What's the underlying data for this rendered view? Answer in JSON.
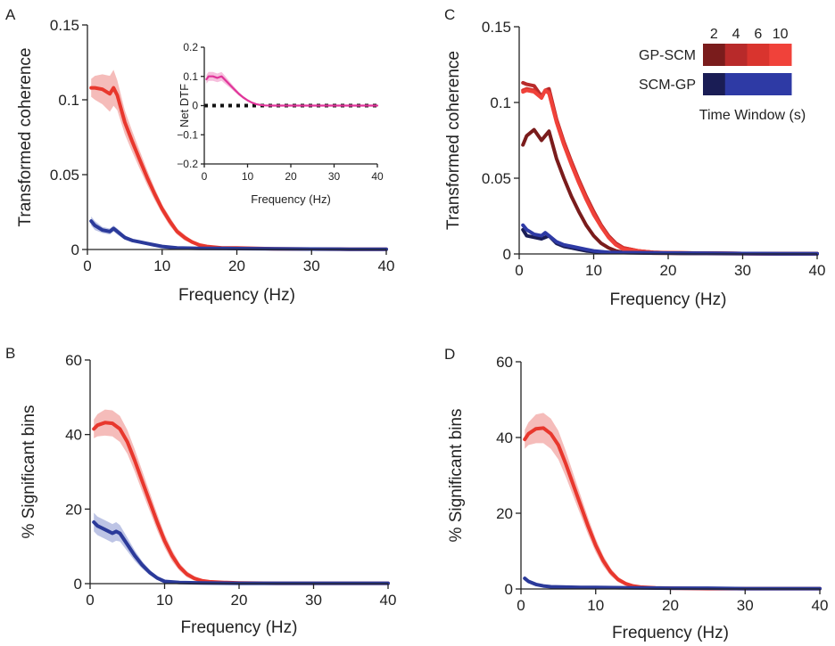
{
  "colors": {
    "red": "#e8372d",
    "blue": "#2b3a9a",
    "magenta": "#e0359a",
    "red_shade": "#f2a6a3",
    "blue_shade": "#a7b0dc",
    "magenta_shade": "#f3a9d2",
    "gp_scm_2": "#7a1c1c",
    "gp_scm_4": "#b82a2a",
    "gp_scm_6": "#d9342e",
    "gp_scm_10": "#f0423a",
    "scm_gp_2": "#1a1d55",
    "scm_gp_other": "#2e3aa5"
  },
  "chart_data": [
    {
      "id": "A",
      "type": "line",
      "panel_label": "A",
      "xlabel": "Frequency (Hz)",
      "ylabel": "Transformed coherence",
      "xlim": [
        0,
        40
      ],
      "ylim": [
        0,
        0.15
      ],
      "xticks": [
        0,
        10,
        20,
        30,
        40
      ],
      "yticks": [
        0,
        0.05,
        0.1,
        0.15
      ],
      "ytick_labels": [
        "0",
        "0.05",
        "0.1",
        "0.15"
      ],
      "grid": false,
      "series": [
        {
          "color_key": "red",
          "shade_key": "red_shade",
          "x": [
            0.5,
            1,
            2,
            3,
            3.5,
            4,
            5,
            6,
            7,
            8,
            9,
            10,
            11,
            12,
            13,
            14,
            15,
            16,
            18,
            20,
            25,
            30,
            35,
            40
          ],
          "y": [
            0.108,
            0.108,
            0.107,
            0.104,
            0.108,
            0.103,
            0.085,
            0.072,
            0.06,
            0.048,
            0.037,
            0.027,
            0.019,
            0.012,
            0.008,
            0.005,
            0.003,
            0.002,
            0.001,
            0.001,
            0.0005,
            0.0003,
            0.0002,
            0.0002
          ],
          "err": [
            0.006,
            0.008,
            0.01,
            0.012,
            0.012,
            0.01,
            0.008,
            0.007,
            0.006,
            0.005,
            0.004,
            0.003,
            0.003,
            0.002,
            0.002,
            0.001,
            0.001,
            0.001,
            0.001,
            0.001,
            0.0005,
            0.0005,
            0.0005,
            0.0005
          ]
        },
        {
          "color_key": "blue",
          "shade_key": "blue_shade",
          "x": [
            0.5,
            1,
            2,
            3,
            3.5,
            4,
            5,
            6,
            7,
            8,
            9,
            10,
            12,
            15,
            20,
            25,
            30,
            35,
            40
          ],
          "y": [
            0.019,
            0.016,
            0.013,
            0.012,
            0.014,
            0.012,
            0.008,
            0.006,
            0.005,
            0.004,
            0.003,
            0.002,
            0.001,
            0.0008,
            0.0006,
            0.0004,
            0.0003,
            0.0002,
            0.0002
          ],
          "err": [
            0.003,
            0.003,
            0.002,
            0.002,
            0.002,
            0.002,
            0.0015,
            0.001,
            0.001,
            0.001,
            0.0008,
            0.0006,
            0.0005,
            0.0004,
            0.0003,
            0.0002,
            0.0002,
            0.0002,
            0.0002
          ]
        }
      ],
      "inset": {
        "xlabel": "Frequency (Hz)",
        "ylabel": "Net DTF",
        "xlim": [
          0,
          40
        ],
        "ylim": [
          -0.2,
          0.2
        ],
        "xticks": [
          0,
          10,
          20,
          30,
          40
        ],
        "yticks": [
          -0.2,
          -0.1,
          0,
          0.1,
          0.2
        ],
        "ytick_labels": [
          "−0.2",
          "−0.1",
          "0",
          "0.1",
          "0.2"
        ],
        "series": {
          "color_key": "magenta",
          "shade_key": "magenta_shade",
          "x": [
            0.5,
            1,
            2,
            3,
            4,
            5,
            6,
            7,
            8,
            9,
            10,
            11,
            12,
            13,
            14,
            16,
            20,
            25,
            30,
            35,
            40
          ],
          "y": [
            0.09,
            0.1,
            0.1,
            0.095,
            0.1,
            0.085,
            0.07,
            0.055,
            0.04,
            0.028,
            0.018,
            0.01,
            0.005,
            0.002,
            0.0005,
            0,
            0,
            0,
            0,
            0,
            0
          ],
          "err": [
            0.015,
            0.015,
            0.015,
            0.015,
            0.015,
            0.013,
            0.01,
            0.008,
            0.006,
            0.005,
            0.004,
            0.003,
            0.002,
            0.001,
            0.001,
            0.001,
            0.001,
            0.001,
            0.001,
            0.001,
            0.001
          ]
        },
        "zero_line": {
          "style": "dotted",
          "value": 0
        }
      }
    },
    {
      "id": "B",
      "type": "line",
      "panel_label": "B",
      "xlabel": "Frequency (Hz)",
      "ylabel": "% Significant bins",
      "xlim": [
        0,
        40
      ],
      "ylim": [
        0,
        60
      ],
      "xticks": [
        0,
        10,
        20,
        30,
        40
      ],
      "yticks": [
        0,
        20,
        40,
        60
      ],
      "ytick_labels": [
        "0",
        "20",
        "40",
        "60"
      ],
      "grid": false,
      "series": [
        {
          "color_key": "red",
          "shade_key": "red_shade",
          "x": [
            0.5,
            1,
            2,
            3,
            4,
            5,
            6,
            7,
            8,
            9,
            10,
            11,
            12,
            13,
            14,
            15,
            16,
            18,
            20,
            25,
            30,
            35,
            40
          ],
          "y": [
            41.5,
            42.5,
            43.2,
            43.0,
            41.5,
            38,
            33,
            27.5,
            22,
            16.5,
            11.5,
            7.5,
            4.5,
            2.5,
            1.4,
            0.8,
            0.5,
            0.3,
            0.2,
            0.1,
            0.1,
            0.1,
            0.1
          ],
          "err": [
            2.5,
            3.0,
            3.5,
            3.5,
            3.5,
            3.2,
            3.0,
            2.8,
            2.5,
            2.2,
            1.8,
            1.5,
            1.0,
            0.8,
            0.6,
            0.4,
            0.3,
            0.2,
            0.2,
            0.1,
            0.1,
            0.1,
            0.1
          ]
        },
        {
          "color_key": "blue",
          "shade_key": "blue_shade",
          "x": [
            0.5,
            1,
            2,
            3,
            3.5,
            4,
            5,
            6,
            7,
            8,
            9,
            10,
            12,
            15,
            20,
            25,
            30,
            35,
            40
          ],
          "y": [
            16.5,
            15.5,
            14.5,
            13.5,
            14,
            13.5,
            10.5,
            7.5,
            5,
            3,
            1.5,
            0.6,
            0.3,
            0.2,
            0.1,
            0.1,
            0.1,
            0.1,
            0.1
          ],
          "err": [
            2.5,
            2.5,
            2.5,
            2.5,
            2.5,
            2.2,
            1.8,
            1.4,
            1.0,
            0.7,
            0.5,
            0.3,
            0.2,
            0.1,
            0.1,
            0.1,
            0.1,
            0.1,
            0.1
          ]
        }
      ]
    },
    {
      "id": "C",
      "type": "line",
      "panel_label": "C",
      "xlabel": "Frequency (Hz)",
      "ylabel": "Transformed coherence",
      "xlim": [
        0,
        40
      ],
      "ylim": [
        0,
        0.15
      ],
      "xticks": [
        0,
        10,
        20,
        30,
        40
      ],
      "yticks": [
        0,
        0.05,
        0.1,
        0.15
      ],
      "ytick_labels": [
        "0",
        "0.05",
        "0.1",
        "0.15"
      ],
      "grid": false,
      "legend": {
        "placement": "top-right",
        "time_windows": [
          "2",
          "4",
          "6",
          "10"
        ],
        "row_labels": [
          "GP-SCM",
          "SCM-GP"
        ],
        "caption": "Time Window (s)"
      },
      "series": [
        {
          "color_key": "gp_scm_2",
          "x": [
            0.5,
            1,
            2,
            3,
            4,
            5,
            6,
            7,
            8,
            9,
            10,
            11,
            12,
            13,
            14,
            16,
            18,
            20,
            25,
            30,
            35,
            40
          ],
          "y": [
            0.072,
            0.078,
            0.082,
            0.075,
            0.081,
            0.063,
            0.05,
            0.038,
            0.028,
            0.019,
            0.012,
            0.007,
            0.004,
            0.002,
            0.001,
            0.0008,
            0.0005,
            0.0004,
            0.0003,
            0.0002,
            0.0002,
            0.0002
          ]
        },
        {
          "color_key": "gp_scm_4",
          "x": [
            0.5,
            1,
            2,
            3,
            3.5,
            4,
            5,
            6,
            7,
            8,
            9,
            10,
            11,
            12,
            13,
            14,
            16,
            18,
            20,
            25,
            30,
            35,
            40
          ],
          "y": [
            0.113,
            0.112,
            0.111,
            0.104,
            0.108,
            0.109,
            0.089,
            0.074,
            0.061,
            0.049,
            0.038,
            0.028,
            0.019,
            0.012,
            0.007,
            0.004,
            0.002,
            0.001,
            0.0008,
            0.0005,
            0.0003,
            0.0002,
            0.0002
          ]
        },
        {
          "color_key": "gp_scm_6",
          "x": [
            0.5,
            1,
            2,
            3,
            3.5,
            4,
            5,
            6,
            7,
            8,
            9,
            10,
            11,
            12,
            13,
            14,
            16,
            18,
            20,
            25,
            30,
            35,
            40
          ],
          "y": [
            0.108,
            0.109,
            0.108,
            0.103,
            0.108,
            0.107,
            0.088,
            0.073,
            0.06,
            0.048,
            0.037,
            0.027,
            0.018,
            0.011,
            0.006,
            0.004,
            0.002,
            0.001,
            0.0007,
            0.0005,
            0.0003,
            0.0002,
            0.0002
          ]
        },
        {
          "color_key": "gp_scm_10",
          "x": [
            0.5,
            1,
            2,
            3,
            3.5,
            4,
            5,
            6,
            7,
            8,
            9,
            10,
            11,
            12,
            13,
            14,
            16,
            18,
            20,
            25,
            30,
            35,
            40
          ],
          "y": [
            0.107,
            0.108,
            0.107,
            0.103,
            0.108,
            0.106,
            0.087,
            0.072,
            0.059,
            0.047,
            0.036,
            0.026,
            0.018,
            0.011,
            0.006,
            0.003,
            0.002,
            0.001,
            0.0007,
            0.0005,
            0.0003,
            0.0002,
            0.0002
          ]
        },
        {
          "color_key": "scm_gp_2",
          "x": [
            0.5,
            1,
            2,
            3,
            4,
            5,
            6,
            7,
            8,
            9,
            10,
            12,
            15,
            20,
            25,
            30,
            35,
            40
          ],
          "y": [
            0.016,
            0.012,
            0.011,
            0.01,
            0.012,
            0.007,
            0.005,
            0.004,
            0.003,
            0.002,
            0.0015,
            0.001,
            0.0008,
            0.0006,
            0.0004,
            0.0003,
            0.0002,
            0.0002
          ]
        },
        {
          "color_key": "scm_gp_other",
          "x": [
            0.5,
            1,
            2,
            3,
            3.5,
            4,
            5,
            6,
            7,
            8,
            9,
            10,
            12,
            15,
            20,
            25,
            30,
            35,
            40
          ],
          "y": [
            0.019,
            0.016,
            0.013,
            0.012,
            0.014,
            0.012,
            0.008,
            0.006,
            0.005,
            0.004,
            0.003,
            0.002,
            0.001,
            0.0008,
            0.0006,
            0.0004,
            0.0003,
            0.0002,
            0.0002
          ]
        }
      ]
    },
    {
      "id": "D",
      "type": "line",
      "panel_label": "D",
      "xlabel": "Frequency (Hz)",
      "ylabel": "% Significant bins",
      "xlim": [
        0,
        40
      ],
      "ylim": [
        0,
        60
      ],
      "xticks": [
        0,
        10,
        20,
        30,
        40
      ],
      "yticks": [
        0,
        20,
        40,
        60
      ],
      "ytick_labels": [
        "0",
        "20",
        "40",
        "60"
      ],
      "grid": false,
      "series": [
        {
          "color_key": "red",
          "shade_key": "red_shade",
          "x": [
            0.5,
            1,
            2,
            3,
            4,
            5,
            6,
            7,
            8,
            9,
            10,
            11,
            12,
            13,
            14,
            15,
            16,
            18,
            20,
            25,
            30,
            35,
            40
          ],
          "y": [
            39.5,
            41,
            42.3,
            42.5,
            41,
            38,
            33,
            27.5,
            22,
            16.5,
            11.5,
            7.5,
            4.5,
            2.5,
            1.4,
            0.8,
            0.5,
            0.3,
            0.2,
            0.1,
            0.1,
            0.1,
            0.1
          ],
          "err": [
            2.5,
            3.0,
            3.8,
            4.0,
            4.0,
            3.8,
            3.4,
            3.0,
            2.6,
            2.2,
            1.8,
            1.4,
            1.0,
            0.7,
            0.5,
            0.4,
            0.3,
            0.2,
            0.2,
            0.1,
            0.1,
            0.1,
            0.1
          ]
        },
        {
          "color_key": "blue",
          "shade_key": "blue_shade",
          "x": [
            0.5,
            1,
            2,
            3,
            4,
            6,
            8,
            10,
            15,
            20,
            25,
            30,
            35,
            40
          ],
          "y": [
            2.8,
            2,
            1.2,
            0.8,
            0.6,
            0.5,
            0.4,
            0.4,
            0.3,
            0.2,
            0.2,
            0.1,
            0.1,
            0.1
          ],
          "err": [
            0.6,
            0.5,
            0.4,
            0.3,
            0.3,
            0.2,
            0.2,
            0.2,
            0.1,
            0.1,
            0.1,
            0.1,
            0.1,
            0.1
          ]
        }
      ]
    }
  ]
}
